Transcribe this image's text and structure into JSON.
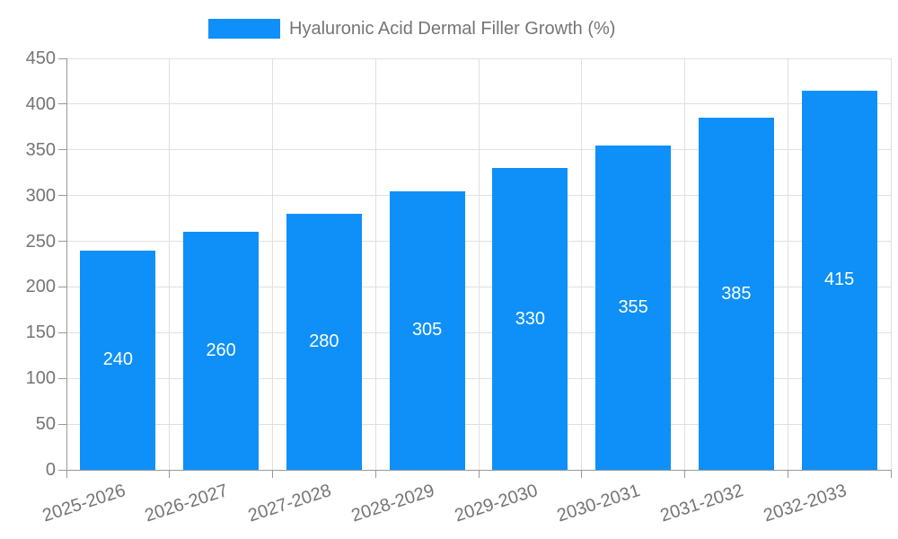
{
  "legend": {
    "label": "Hyaluronic Acid Dermal Filler Growth (%)"
  },
  "colors": {
    "bar": "#0e90f8",
    "bar_label": "#ffffff",
    "axis_label": "#757575",
    "legend_text": "#757575",
    "grid_line": "#e0e0e0",
    "axis_line": "#999999",
    "background": "#ffffff"
  },
  "chart_data": {
    "type": "bar",
    "title": "",
    "legend_entries": [
      "Hyaluronic Acid Dermal Filler Growth (%)"
    ],
    "legend_position": "top",
    "categories": [
      "2025-2026",
      "2026-2027",
      "2027-2028",
      "2028-2029",
      "2029-2030",
      "2030-2031",
      "2031-2032",
      "2032-2033"
    ],
    "series": [
      {
        "name": "Hyaluronic Acid Dermal Filler Growth (%)",
        "values": [
          240,
          260,
          280,
          305,
          330,
          355,
          385,
          415
        ]
      }
    ],
    "xlabel": "",
    "ylabel": "",
    "ylim": [
      0,
      450
    ],
    "ytick_step": 50,
    "ytick_labels": [
      "0",
      "50",
      "100",
      "150",
      "200",
      "250",
      "300",
      "350",
      "400",
      "450"
    ],
    "grid": true,
    "x_label_rotation_deg": -18,
    "bar_label_position": "inside-center"
  }
}
